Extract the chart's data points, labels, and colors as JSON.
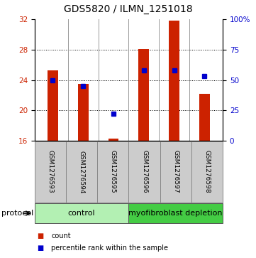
{
  "title": "GDS5820 / ILMN_1251018",
  "samples": [
    "GSM1276593",
    "GSM1276594",
    "GSM1276595",
    "GSM1276596",
    "GSM1276597",
    "GSM1276598"
  ],
  "bar_bottoms": [
    16,
    16,
    16,
    16,
    16,
    16
  ],
  "bar_tops": [
    25.3,
    23.5,
    16.3,
    28.1,
    31.8,
    22.2
  ],
  "percentile_ranks_pct": [
    50,
    45,
    22,
    58,
    58,
    53
  ],
  "ylim_left": [
    16,
    32
  ],
  "ylim_right": [
    0,
    100
  ],
  "yticks_left": [
    16,
    20,
    24,
    28,
    32
  ],
  "yticks_right": [
    0,
    25,
    50,
    75,
    100
  ],
  "bar_color": "#cc2200",
  "percentile_color": "#0000cc",
  "grid_color": "#000000",
  "protocol_groups": [
    {
      "label": "control",
      "n_samples": 3,
      "color": "#b3f0b3"
    },
    {
      "label": "myofibroblast depletion",
      "n_samples": 3,
      "color": "#44cc44"
    }
  ],
  "protocol_label": "protocol",
  "legend_items": [
    {
      "label": "count",
      "color": "#cc2200"
    },
    {
      "label": "percentile rank within the sample",
      "color": "#0000cc"
    }
  ],
  "bg_color": "#ffffff",
  "sample_box_color": "#cccccc",
  "title_fontsize": 10,
  "tick_fontsize": 7.5,
  "sample_fontsize": 6.5,
  "protocol_fontsize": 8,
  "legend_fontsize": 7
}
